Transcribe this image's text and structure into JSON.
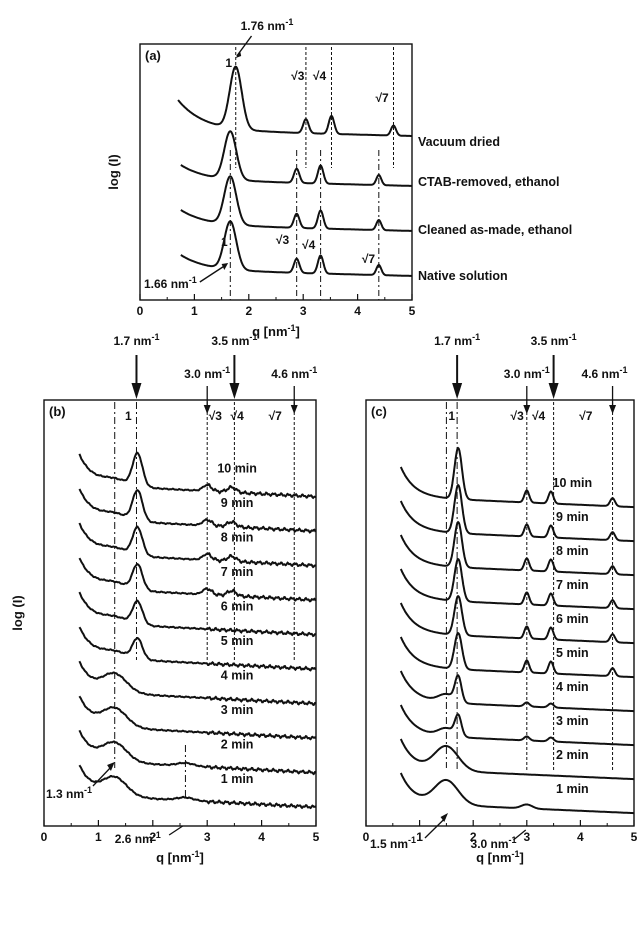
{
  "chart_data": [
    {
      "type": "line",
      "panel_label": "(a)",
      "xlabel": "q [nm",
      "xlabel_sup": "-1",
      "xlabel_end": "]",
      "ylabel": "log (I)",
      "xlim": [
        0,
        5
      ],
      "x_ticks": [
        "0",
        "1",
        "2",
        "3",
        "4",
        "5"
      ],
      "series": [
        {
          "name": "Vacuum dried",
          "peaks_q": [
            1.76,
            3.05,
            3.52,
            4.66
          ],
          "offset_index": 3
        },
        {
          "name": "CTAB-removed, ethanol",
          "peaks_q": [
            1.66,
            2.88,
            3.32,
            4.39
          ],
          "offset_index": 2
        },
        {
          "name": "Cleaned as-made, ethanol",
          "peaks_q": [
            1.66,
            2.88,
            3.32,
            4.39
          ],
          "offset_index": 1
        },
        {
          "name": "Native solution",
          "peaks_q": [
            1.66,
            2.88,
            3.32,
            4.39
          ],
          "offset_index": 0
        }
      ],
      "annotations": {
        "top_arrow": {
          "value": "1.76",
          "unit": "nm",
          "sup": "-1"
        },
        "bottom_arrow": {
          "value": "1.66",
          "unit": "nm",
          "sup": "-1"
        },
        "order_labels_top": [
          "1",
          "√3",
          "√4",
          "√7"
        ],
        "order_labels_bottom": [
          "1",
          "√3",
          "√4",
          "√7"
        ]
      }
    },
    {
      "type": "line",
      "panel_label": "(b)",
      "xlabel": "q [nm",
      "xlabel_sup": "-1",
      "xlabel_end": "]",
      "ylabel": "log (I)",
      "xlim": [
        0,
        5
      ],
      "x_ticks": [
        "0",
        "1",
        "2",
        "3",
        "4",
        "5"
      ],
      "series": [
        {
          "name": "10 min"
        },
        {
          "name": "9 min"
        },
        {
          "name": "8 min"
        },
        {
          "name": "7 min"
        },
        {
          "name": "6 min"
        },
        {
          "name": "5 min"
        },
        {
          "name": "4 min"
        },
        {
          "name": "3 min"
        },
        {
          "name": "2 min"
        },
        {
          "name": "1 min"
        }
      ],
      "annotations": {
        "top_arrows": [
          {
            "value": "1.7",
            "unit": "nm",
            "sup": "-1",
            "q": 1.7
          },
          {
            "value": "3.0",
            "unit": "nm",
            "sup": "-1",
            "q": 3.0
          },
          {
            "value": "3.5",
            "unit": "nm",
            "sup": "-1",
            "q": 3.5
          },
          {
            "value": "4.6",
            "unit": "nm",
            "sup": "-1",
            "q": 4.6
          }
        ],
        "order_labels": [
          "1",
          "√3",
          "√4",
          "√7"
        ],
        "bottom_arrows": [
          {
            "value": "1.3",
            "unit": "nm",
            "sup": "-1",
            "q": 1.3
          },
          {
            "value": "2.6",
            "unit": "nm",
            "sup": "-1",
            "q": 2.6
          }
        ]
      }
    },
    {
      "type": "line",
      "panel_label": "(c)",
      "xlabel": "q [nm",
      "xlabel_sup": "-1",
      "xlabel_end": "]",
      "xlim": [
        0,
        5
      ],
      "x_ticks": [
        "0",
        "1",
        "2",
        "3",
        "4",
        "5"
      ],
      "series": [
        {
          "name": "10 min"
        },
        {
          "name": "9 min"
        },
        {
          "name": "8 min"
        },
        {
          "name": "7 min"
        },
        {
          "name": "6 min"
        },
        {
          "name": "5 min"
        },
        {
          "name": "4 min"
        },
        {
          "name": "3 min"
        },
        {
          "name": "2 min"
        },
        {
          "name": "1 min"
        }
      ],
      "annotations": {
        "top_arrows": [
          {
            "value": "1.7",
            "unit": "nm",
            "sup": "-1",
            "q": 1.7
          },
          {
            "value": "3.0",
            "unit": "nm",
            "sup": "-1",
            "q": 3.0
          },
          {
            "value": "3.5",
            "unit": "nm",
            "sup": "-1",
            "q": 3.5
          },
          {
            "value": "4.6",
            "unit": "nm",
            "sup": "-1",
            "q": 4.6
          }
        ],
        "order_labels": [
          "1",
          "√3",
          "√4",
          "√7"
        ],
        "bottom_arrows": [
          {
            "value": "1.5",
            "unit": "nm",
            "sup": "-1",
            "q": 1.5
          },
          {
            "value": "3.0",
            "unit": "nm",
            "sup": "-1",
            "q": 3.0
          }
        ]
      }
    }
  ]
}
